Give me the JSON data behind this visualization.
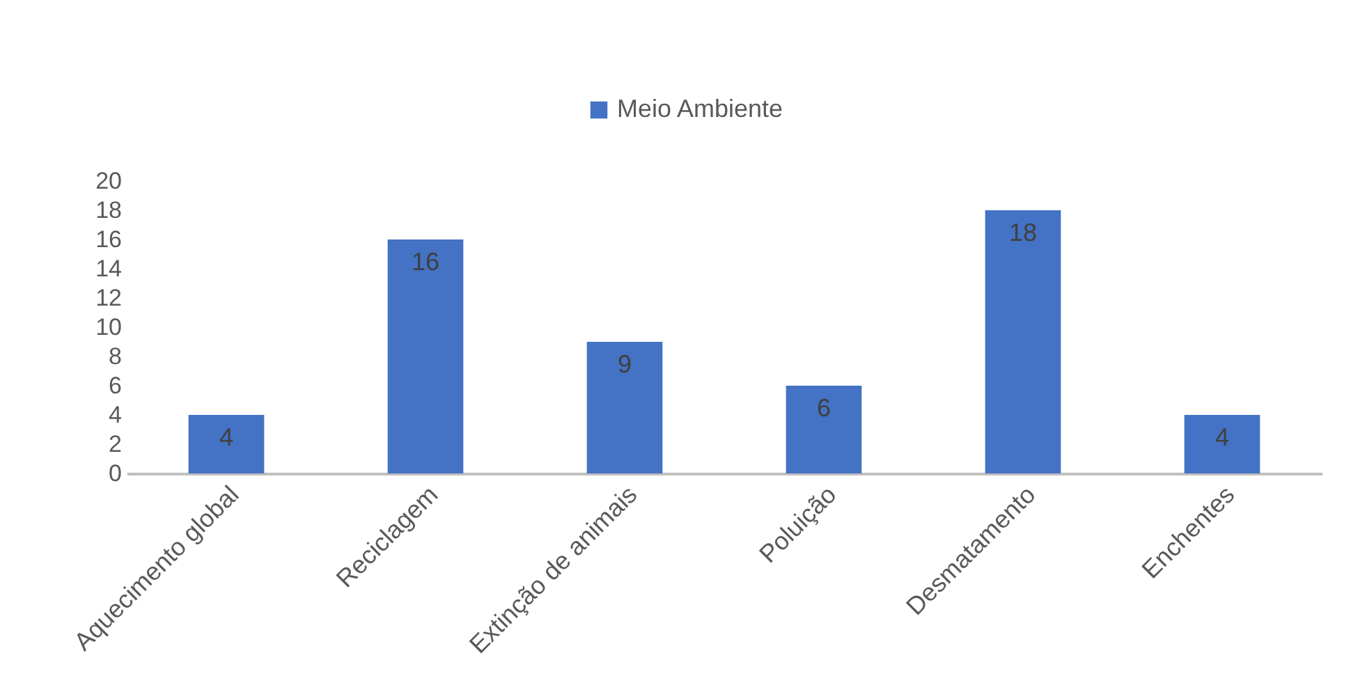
{
  "chart_data": {
    "type": "bar",
    "categories": [
      "Aquecimento global",
      "Reciclagem",
      "Extinção de animais",
      "Poluição",
      "Desmatamento",
      "Enchentes"
    ],
    "series": [
      {
        "name": "Meio Ambiente",
        "color": "#4472c4",
        "values": [
          4,
          16,
          9,
          6,
          18,
          4
        ]
      }
    ],
    "ylim": [
      0,
      20
    ],
    "yticks": [
      0,
      2,
      4,
      6,
      8,
      10,
      12,
      14,
      16,
      18,
      20
    ],
    "grid": false,
    "legend": "top",
    "data_labels": true
  }
}
